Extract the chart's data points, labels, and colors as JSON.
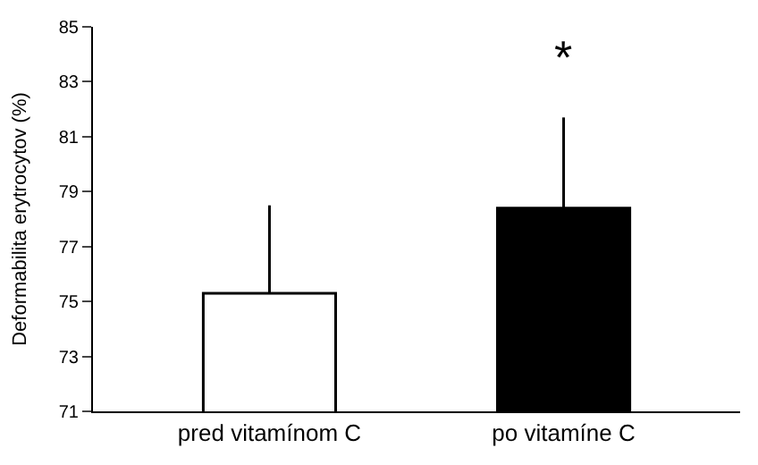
{
  "chart_data": {
    "type": "bar",
    "ylabel": "Deformabilita erytrocytov (%)",
    "categories": [
      "pred vitamínom C",
      "po vitamíne C"
    ],
    "values": [
      75.3,
      78.4
    ],
    "colors": [
      "#ffffff",
      "#000000"
    ],
    "errors": [
      [
        75.3,
        78.5
      ],
      [
        78.4,
        81.7
      ]
    ],
    "ylim": [
      71,
      85
    ],
    "yticks": [
      71,
      73,
      75,
      77,
      79,
      81,
      83,
      85
    ],
    "annotations": [
      "*"
    ]
  }
}
